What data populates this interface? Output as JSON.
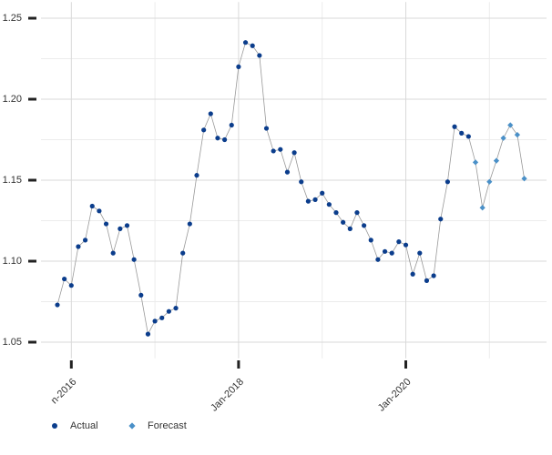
{
  "chart_data": {
    "type": "line",
    "x": [
      "Nov-2015",
      "Dec-2015",
      "Jan-2016",
      "Feb-2016",
      "Mar-2016",
      "Apr-2016",
      "May-2016",
      "Jun-2016",
      "Jul-2016",
      "Aug-2016",
      "Sep-2016",
      "Oct-2016",
      "Nov-2016",
      "Dec-2016",
      "Jan-2017",
      "Feb-2017",
      "Mar-2017",
      "Apr-2017",
      "May-2017",
      "Jun-2017",
      "Jul-2017",
      "Aug-2017",
      "Sep-2017",
      "Oct-2017",
      "Nov-2017",
      "Dec-2017",
      "Jan-2018",
      "Feb-2018",
      "Mar-2018",
      "Apr-2018",
      "May-2018",
      "Jun-2018",
      "Jul-2018",
      "Aug-2018",
      "Sep-2018",
      "Oct-2018",
      "Nov-2018",
      "Dec-2018",
      "Jan-2019",
      "Feb-2019",
      "Mar-2019",
      "Apr-2019",
      "May-2019",
      "Jun-2019",
      "Jul-2019",
      "Aug-2019",
      "Sep-2019",
      "Oct-2019",
      "Nov-2019",
      "Dec-2019",
      "Jan-2020",
      "Feb-2020",
      "Mar-2020",
      "Apr-2020",
      "May-2020",
      "Jun-2020",
      "Jul-2020",
      "Aug-2020",
      "Sep-2020",
      "Oct-2020",
      "Nov-2020",
      "Dec-2020",
      "Jan-2021",
      "Feb-2021",
      "Mar-2021",
      "Apr-2021",
      "May-2021",
      "Jun-2021"
    ],
    "series": [
      {
        "name": "Actual",
        "color": "#0b3d8c",
        "marker": "circle",
        "values": [
          1.073,
          1.089,
          1.085,
          1.109,
          1.113,
          1.134,
          1.131,
          1.123,
          1.105,
          1.12,
          1.122,
          1.101,
          1.079,
          1.055,
          1.063,
          1.065,
          1.069,
          1.071,
          1.105,
          1.123,
          1.153,
          1.181,
          1.191,
          1.176,
          1.175,
          1.184,
          1.22,
          1.235,
          1.233,
          1.227,
          1.182,
          1.168,
          1.169,
          1.155,
          1.167,
          1.149,
          1.137,
          1.138,
          1.142,
          1.135,
          1.13,
          1.124,
          1.12,
          1.13,
          1.122,
          1.113,
          1.101,
          1.106,
          1.105,
          1.112,
          1.11,
          1.092,
          1.105,
          1.088,
          1.091,
          1.126,
          1.149,
          1.183,
          1.179,
          1.177,
          null,
          null,
          null,
          null,
          null,
          null,
          null,
          null
        ]
      },
      {
        "name": "Forecast",
        "color": "#4a90c8",
        "marker": "diamond",
        "values": [
          null,
          null,
          null,
          null,
          null,
          null,
          null,
          null,
          null,
          null,
          null,
          null,
          null,
          null,
          null,
          null,
          null,
          null,
          null,
          null,
          null,
          null,
          null,
          null,
          null,
          null,
          null,
          null,
          null,
          null,
          null,
          null,
          null,
          null,
          null,
          null,
          null,
          null,
          null,
          null,
          null,
          null,
          null,
          null,
          null,
          null,
          null,
          null,
          null,
          null,
          null,
          null,
          null,
          null,
          null,
          null,
          null,
          null,
          null,
          null,
          1.161,
          1.133,
          1.149,
          1.162,
          1.176,
          1.184,
          1.178,
          1.151
        ]
      }
    ],
    "line_color": "#999999",
    "ylim": [
      1.04,
      1.26
    ],
    "yticks": [
      {
        "value": 1.05,
        "label": "1.05"
      },
      {
        "value": 1.1,
        "label": "1.10"
      },
      {
        "value": 1.15,
        "label": "1.15"
      },
      {
        "value": 1.2,
        "label": "1.20"
      },
      {
        "value": 1.25,
        "label": "1.25"
      }
    ],
    "xticks": [
      {
        "value": "Jan-2016",
        "label": "n-2016"
      },
      "Jan-2018",
      "Jan-2020"
    ],
    "grid": true,
    "legend": "bottom-left"
  }
}
